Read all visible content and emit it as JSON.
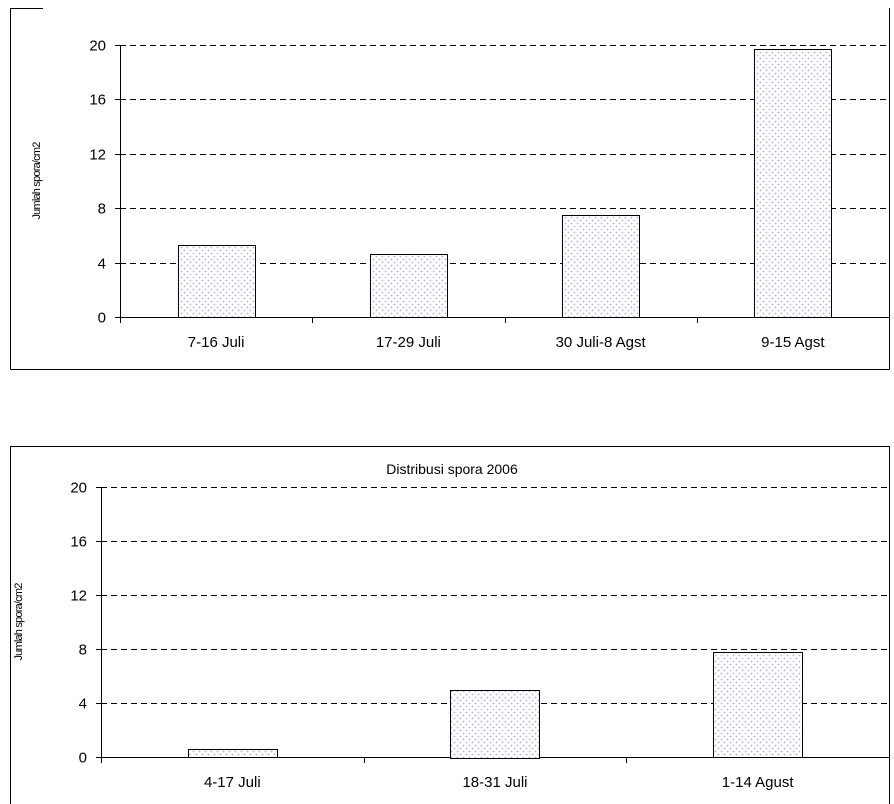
{
  "chart_data": [
    {
      "type": "bar",
      "title": "",
      "xlabel": "",
      "ylabel": "Jumlah spora/cm2",
      "categories": [
        "7-16 Juli",
        "17-29 Juli",
        "30 Juli-8 Agst",
        "9-15 Agst"
      ],
      "values": [
        5.3,
        4.6,
        7.5,
        19.7
      ],
      "ylim": [
        0,
        20
      ],
      "yticks": [
        0,
        4,
        8,
        12,
        16,
        20
      ],
      "grid": true,
      "legend": "none",
      "bar_fill": "#ffffff",
      "bar_dots": "#aab2e8"
    },
    {
      "type": "bar",
      "title": "Distribusi spora 2006",
      "xlabel": "",
      "ylabel": "Jumlah spora/cm2",
      "categories": [
        "4-17 Juli",
        "18-31 Juli",
        "1-14 Agust"
      ],
      "values": [
        0.6,
        5.0,
        7.8
      ],
      "ylim": [
        0,
        20
      ],
      "yticks": [
        0,
        4,
        8,
        12,
        16,
        20
      ],
      "grid": true,
      "legend": "none",
      "bar_fill": "#ffffff",
      "bar_dots": "#aab2e8"
    }
  ]
}
